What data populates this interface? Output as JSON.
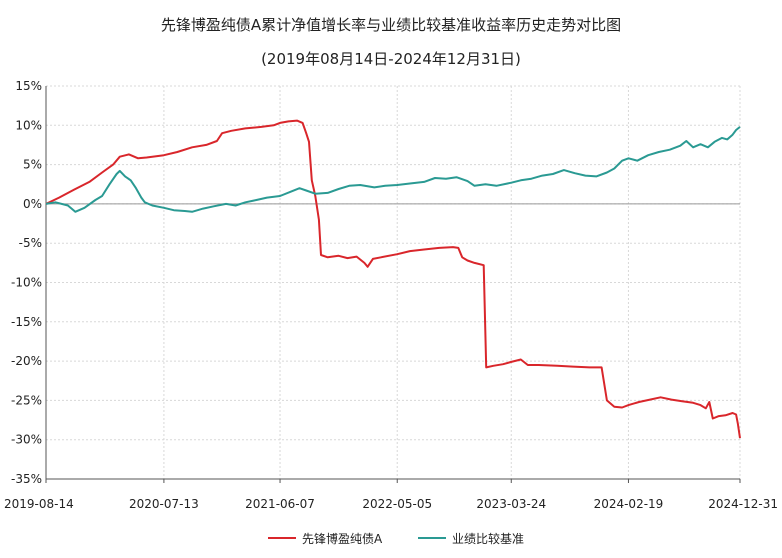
{
  "colors": {
    "fund": "#d9262b",
    "benchmark": "#2a9a93",
    "grid": "#d8d8d8",
    "axis": "#555555"
  },
  "chart_data": {
    "type": "line",
    "title": "先锋博盈纯债A累计净值增长率与业绩比较基准收益率历史走势对比图",
    "subtitle": "(2019年08月14日-2024年12月31日)",
    "ylim": [
      -35,
      15
    ],
    "yticks": [
      15,
      10,
      5,
      0,
      -5,
      -10,
      -15,
      -20,
      -25,
      -30,
      -35
    ],
    "y_unit": "%",
    "xlim": [
      "2019-08-14",
      "2024-12-31"
    ],
    "xticks": [
      "2019-08-14",
      "2020-07-13",
      "2021-06-07",
      "2022-05-05",
      "2023-03-24",
      "2024-02-19",
      "2024-12-31"
    ],
    "grid": true,
    "legend_position": "bottom",
    "series": [
      {
        "name": "先锋博盈纯债A",
        "color": "#d9262b",
        "points": [
          [
            "2019-08-14",
            0
          ],
          [
            "2019-09-20",
            0.8
          ],
          [
            "2019-11-01",
            1.8
          ],
          [
            "2019-12-15",
            2.8
          ],
          [
            "2020-01-20",
            4.0
          ],
          [
            "2020-02-20",
            5.0
          ],
          [
            "2020-03-10",
            6.0
          ],
          [
            "2020-04-05",
            6.3
          ],
          [
            "2020-05-01",
            5.8
          ],
          [
            "2020-05-25",
            5.9
          ],
          [
            "2020-07-13",
            6.2
          ],
          [
            "2020-08-20",
            6.6
          ],
          [
            "2020-10-01",
            7.2
          ],
          [
            "2020-11-10",
            7.5
          ],
          [
            "2020-12-10",
            8.0
          ],
          [
            "2020-12-25",
            9.0
          ],
          [
            "2021-01-20",
            9.3
          ],
          [
            "2021-03-01",
            9.6
          ],
          [
            "2021-04-15",
            9.8
          ],
          [
            "2021-05-20",
            10.0
          ],
          [
            "2021-06-07",
            10.3
          ],
          [
            "2021-07-01",
            10.5
          ],
          [
            "2021-07-25",
            10.6
          ],
          [
            "2021-08-10",
            10.3
          ],
          [
            "2021-08-20",
            9.0
          ],
          [
            "2021-08-28",
            7.9
          ],
          [
            "2021-09-05",
            3.0
          ],
          [
            "2021-09-15",
            1.0
          ],
          [
            "2021-09-25",
            -2.0
          ],
          [
            "2021-10-01",
            -6.5
          ],
          [
            "2021-10-20",
            -6.8
          ],
          [
            "2021-11-20",
            -6.6
          ],
          [
            "2021-12-15",
            -6.9
          ],
          [
            "2022-01-10",
            -6.7
          ],
          [
            "2022-02-01",
            -7.5
          ],
          [
            "2022-02-10",
            -8.0
          ],
          [
            "2022-02-25",
            -7.0
          ],
          [
            "2022-03-20",
            -6.8
          ],
          [
            "2022-05-05",
            -6.4
          ],
          [
            "2022-06-10",
            -6.0
          ],
          [
            "2022-07-20",
            -5.8
          ],
          [
            "2022-09-01",
            -5.6
          ],
          [
            "2022-10-10",
            -5.5
          ],
          [
            "2022-10-25",
            -5.6
          ],
          [
            "2022-11-05",
            -6.8
          ],
          [
            "2022-11-20",
            -7.2
          ],
          [
            "2022-12-10",
            -7.5
          ],
          [
            "2023-01-05",
            -7.8
          ],
          [
            "2023-01-12",
            -20.8
          ],
          [
            "2023-02-01",
            -20.6
          ],
          [
            "2023-03-01",
            -20.4
          ],
          [
            "2023-03-24",
            -20.1
          ],
          [
            "2023-04-20",
            -19.8
          ],
          [
            "2023-05-10",
            -20.5
          ],
          [
            "2023-06-10",
            -20.5
          ],
          [
            "2023-08-01",
            -20.6
          ],
          [
            "2023-09-15",
            -20.7
          ],
          [
            "2023-11-01",
            -20.8
          ],
          [
            "2023-12-05",
            -20.8
          ],
          [
            "2023-12-20",
            -25.0
          ],
          [
            "2024-01-10",
            -25.8
          ],
          [
            "2024-02-01",
            -25.9
          ],
          [
            "2024-02-19",
            -25.6
          ],
          [
            "2024-03-20",
            -25.2
          ],
          [
            "2024-04-20",
            -24.9
          ],
          [
            "2024-05-20",
            -24.6
          ],
          [
            "2024-06-20",
            -24.9
          ],
          [
            "2024-07-20",
            -25.1
          ],
          [
            "2024-08-20",
            -25.3
          ],
          [
            "2024-09-10",
            -25.6
          ],
          [
            "2024-09-25",
            -26.0
          ],
          [
            "2024-10-05",
            -25.2
          ],
          [
            "2024-10-15",
            -27.3
          ],
          [
            "2024-11-01",
            -27.0
          ],
          [
            "2024-11-20",
            -26.9
          ],
          [
            "2024-12-10",
            -26.6
          ],
          [
            "2024-12-20",
            -26.8
          ],
          [
            "2024-12-25",
            -28.0
          ],
          [
            "2024-12-31",
            -29.8
          ]
        ]
      },
      {
        "name": "业绩比较基准",
        "color": "#2a9a93",
        "points": [
          [
            "2019-08-14",
            0
          ],
          [
            "2019-09-10",
            0.2
          ],
          [
            "2019-10-15",
            -0.2
          ],
          [
            "2019-11-05",
            -1.0
          ],
          [
            "2019-12-01",
            -0.5
          ],
          [
            "2020-01-01",
            0.5
          ],
          [
            "2020-01-20",
            1.0
          ],
          [
            "2020-02-10",
            2.5
          ],
          [
            "2020-03-01",
            3.8
          ],
          [
            "2020-03-10",
            4.2
          ],
          [
            "2020-03-25",
            3.5
          ],
          [
            "2020-04-10",
            3.0
          ],
          [
            "2020-04-25",
            2.0
          ],
          [
            "2020-05-10",
            0.8
          ],
          [
            "2020-05-20",
            0.2
          ],
          [
            "2020-06-10",
            -0.2
          ],
          [
            "2020-07-13",
            -0.5
          ],
          [
            "2020-08-10",
            -0.8
          ],
          [
            "2020-09-10",
            -0.9
          ],
          [
            "2020-10-01",
            -1.0
          ],
          [
            "2020-11-01",
            -0.6
          ],
          [
            "2020-12-01",
            -0.3
          ],
          [
            "2021-01-05",
            0.0
          ],
          [
            "2021-02-01",
            -0.2
          ],
          [
            "2021-03-01",
            0.2
          ],
          [
            "2021-04-01",
            0.5
          ],
          [
            "2021-05-01",
            0.8
          ],
          [
            "2021-06-07",
            1.0
          ],
          [
            "2021-07-10",
            1.6
          ],
          [
            "2021-08-01",
            2.0
          ],
          [
            "2021-08-20",
            1.7
          ],
          [
            "2021-09-15",
            1.3
          ],
          [
            "2021-10-20",
            1.4
          ],
          [
            "2021-11-20",
            1.9
          ],
          [
            "2021-12-20",
            2.3
          ],
          [
            "2022-01-20",
            2.4
          ],
          [
            "2022-03-01",
            2.1
          ],
          [
            "2022-04-01",
            2.3
          ],
          [
            "2022-05-05",
            2.4
          ],
          [
            "2022-06-10",
            2.6
          ],
          [
            "2022-07-20",
            2.8
          ],
          [
            "2022-08-20",
            3.3
          ],
          [
            "2022-09-20",
            3.2
          ],
          [
            "2022-10-20",
            3.4
          ],
          [
            "2022-11-20",
            2.9
          ],
          [
            "2022-12-10",
            2.3
          ],
          [
            "2023-01-10",
            2.5
          ],
          [
            "2023-02-10",
            2.3
          ],
          [
            "2023-03-24",
            2.7
          ],
          [
            "2023-04-20",
            3.0
          ],
          [
            "2023-05-20",
            3.2
          ],
          [
            "2023-06-20",
            3.6
          ],
          [
            "2023-07-20",
            3.8
          ],
          [
            "2023-08-20",
            4.3
          ],
          [
            "2023-09-20",
            3.9
          ],
          [
            "2023-10-20",
            3.6
          ],
          [
            "2023-11-20",
            3.5
          ],
          [
            "2023-12-20",
            4.0
          ],
          [
            "2024-01-10",
            4.5
          ],
          [
            "2024-02-01",
            5.5
          ],
          [
            "2024-02-19",
            5.8
          ],
          [
            "2024-03-15",
            5.5
          ],
          [
            "2024-04-15",
            6.2
          ],
          [
            "2024-05-15",
            6.6
          ],
          [
            "2024-06-15",
            6.9
          ],
          [
            "2024-07-15",
            7.4
          ],
          [
            "2024-08-01",
            8.0
          ],
          [
            "2024-08-20",
            7.2
          ],
          [
            "2024-09-10",
            7.6
          ],
          [
            "2024-10-01",
            7.2
          ],
          [
            "2024-10-20",
            7.9
          ],
          [
            "2024-11-10",
            8.4
          ],
          [
            "2024-11-25",
            8.2
          ],
          [
            "2024-12-10",
            8.8
          ],
          [
            "2024-12-20",
            9.4
          ],
          [
            "2024-12-31",
            9.8
          ]
        ]
      }
    ]
  }
}
